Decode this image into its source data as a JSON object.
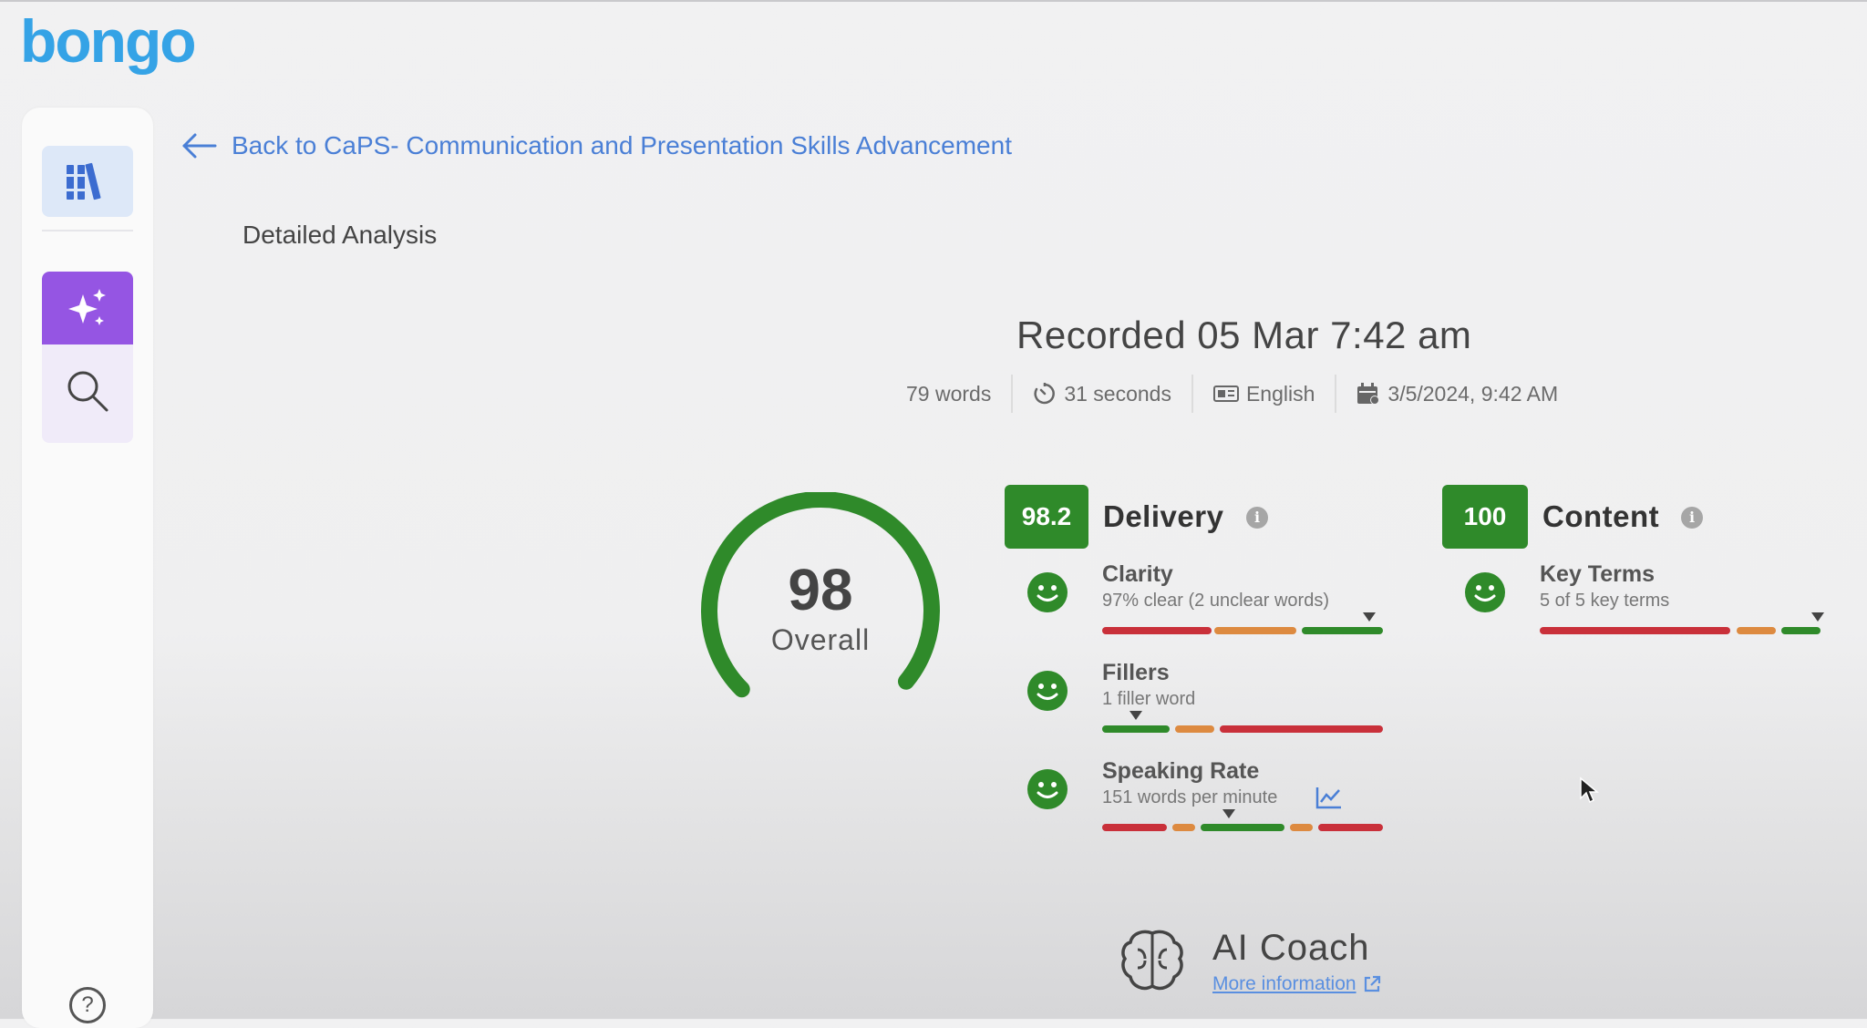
{
  "app": {
    "logo_text": "bongo"
  },
  "nav": {
    "back_label": "Back to CaPS- Communication and Presentation Skills Advancement",
    "section_title": "Detailed Analysis"
  },
  "recording": {
    "title": "Recorded 05 Mar 7:42 am",
    "words": "79 words",
    "duration": "31 seconds",
    "language": "English",
    "date": "3/5/2024, 9:42 AM"
  },
  "overall": {
    "score": "98",
    "label": "Overall",
    "fraction": 0.98
  },
  "delivery": {
    "score": "98.2",
    "title": "Delivery",
    "metrics": [
      {
        "name": "Clarity",
        "detail": "97% clear (2 unclear words)",
        "marker": 0.95,
        "segments": [
          {
            "color": "#c9303a",
            "from": 0.0,
            "to": 0.39
          },
          {
            "color": "#dd8a40",
            "from": 0.4,
            "to": 0.69
          },
          {
            "color": "#2f8a2a",
            "from": 0.71,
            "to": 1.0
          }
        ]
      },
      {
        "name": "Fillers",
        "detail": "1 filler word",
        "marker": 0.12,
        "segments": [
          {
            "color": "#2f8a2a",
            "from": 0.0,
            "to": 0.24
          },
          {
            "color": "#dd8a40",
            "from": 0.26,
            "to": 0.4
          },
          {
            "color": "#c9303a",
            "from": 0.42,
            "to": 1.0
          }
        ]
      },
      {
        "name": "Speaking Rate",
        "detail": "151 words per minute",
        "marker": 0.45,
        "segments": [
          {
            "color": "#c9303a",
            "from": 0.0,
            "to": 0.23
          },
          {
            "color": "#dd8a40",
            "from": 0.25,
            "to": 0.33
          },
          {
            "color": "#2f8a2a",
            "from": 0.35,
            "to": 0.65
          },
          {
            "color": "#dd8a40",
            "from": 0.67,
            "to": 0.75
          },
          {
            "color": "#c9303a",
            "from": 0.77,
            "to": 1.0
          }
        ]
      }
    ]
  },
  "content": {
    "score": "100",
    "title": "Content",
    "metrics": [
      {
        "name": "Key Terms",
        "detail": "5 of 5 key terms",
        "marker": 0.99,
        "segments": [
          {
            "color": "#c9303a",
            "from": 0.0,
            "to": 0.68
          },
          {
            "color": "#dd8a40",
            "from": 0.7,
            "to": 0.84
          },
          {
            "color": "#2f8a2a",
            "from": 0.86,
            "to": 1.0
          }
        ]
      }
    ]
  },
  "ai_coach": {
    "title": "AI Coach",
    "link_label": "More information"
  },
  "colors": {
    "accent": "#35a3e6",
    "link": "#4a7fd6",
    "good": "#2f8a2a",
    "warn": "#dd8a40",
    "bad": "#c9303a",
    "ai_purple": "#9555e3"
  },
  "icons": [
    "library-icon",
    "sparkle-icon",
    "search-icon",
    "help-icon",
    "arrow-left-icon",
    "timer-icon",
    "language-icon",
    "calendar-icon",
    "info-icon",
    "smiley-icon",
    "trend-chart-icon",
    "brain-icon",
    "external-link-icon"
  ]
}
